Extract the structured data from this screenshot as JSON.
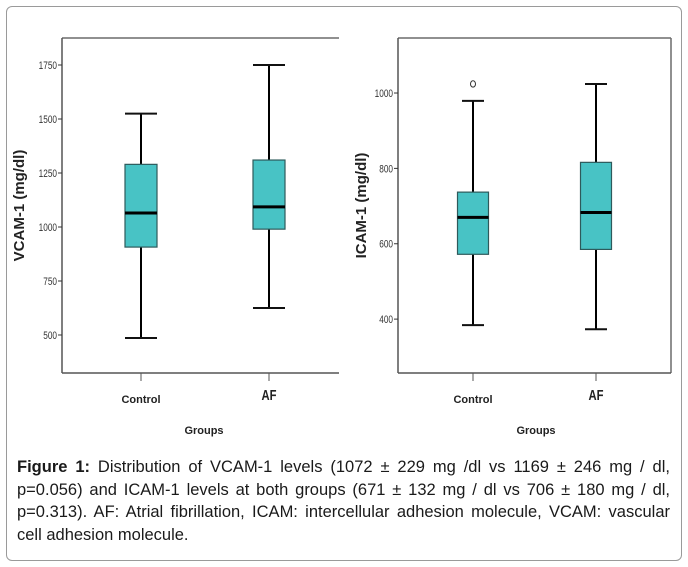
{
  "chart_data": [
    {
      "type": "box",
      "title": "",
      "xlabel": "Groups",
      "ylabel": "VCAM-1 (mg/dl)",
      "ylim": [
        324,
        1875
      ],
      "yticks": [
        500,
        750,
        1000,
        1250,
        1500,
        1750
      ],
      "ytick_labels": [
        "500",
        "750",
        "1000",
        "1250",
        "1500",
        "1750"
      ],
      "categories": [
        "Control",
        "AF"
      ],
      "boxes": [
        {
          "name": "Control",
          "whisker_low": 486,
          "q1": 907,
          "median": 1065,
          "q3": 1290,
          "whisker_high": 1525,
          "outliers": []
        },
        {
          "name": "AF",
          "whisker_low": 625,
          "q1": 990,
          "median": 1093,
          "q3": 1310,
          "whisker_high": 1750,
          "outliers": []
        }
      ],
      "box_color": "#48c3c5",
      "grid": false,
      "legend": "none"
    },
    {
      "type": "box",
      "title": "",
      "xlabel": "Groups",
      "ylabel": "ICAM-1 (mg/dl)",
      "ylim": [
        257,
        1146
      ],
      "yticks": [
        400,
        600,
        800,
        1000
      ],
      "ytick_labels": [
        "400",
        "600",
        "800",
        "1000"
      ],
      "categories": [
        "Control",
        "AF"
      ],
      "boxes": [
        {
          "name": "Control",
          "whisker_low": 384,
          "q1": 572,
          "median": 670,
          "q3": 737,
          "whisker_high": 979,
          "outliers": [
            1024
          ]
        },
        {
          "name": "AF",
          "whisker_low": 373,
          "q1": 585,
          "median": 683,
          "q3": 816,
          "whisker_high": 1024,
          "outliers": []
        }
      ],
      "box_color": "#48c3c5",
      "grid": false,
      "legend": "none"
    }
  ],
  "caption": {
    "label": "Figure 1:",
    "text": " Distribution of VCAM-1 levels (1072 ± 229 mg /dl vs 1169 ± 246 mg / dl, p=0.056) and ICAM-1 levels at both groups (671 ± 132 mg / dl vs 706 ± 180 mg / dl, p=0.313). AF: Atrial fibrillation, ICAM: intercellular adhesion molecule, VCAM: vascular cell adhesion molecule."
  }
}
